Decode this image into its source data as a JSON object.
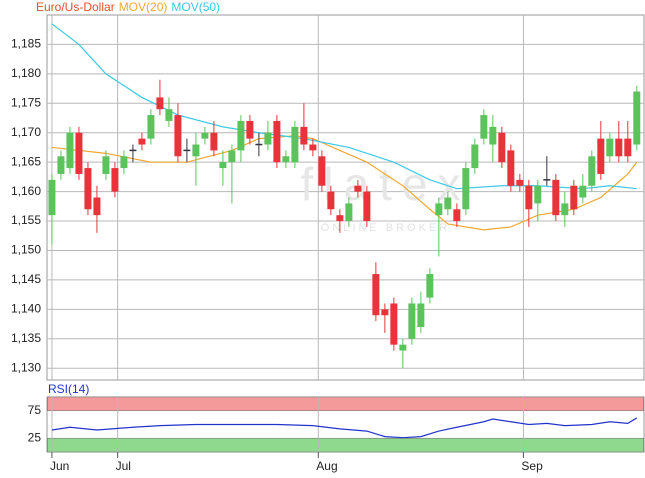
{
  "chart_data": [
    {
      "type": "candlestick",
      "ylim": [
        1.128,
        1.19
      ],
      "xlim": [
        -0.55,
        65.8
      ],
      "yticks": [
        {
          "value": 1.13,
          "label": "1,130"
        },
        {
          "value": 1.135,
          "label": "1,135"
        },
        {
          "value": 1.14,
          "label": "1,140"
        },
        {
          "value": 1.145,
          "label": "1,145"
        },
        {
          "value": 1.15,
          "label": "1,150"
        },
        {
          "value": 1.155,
          "label": "1,155"
        },
        {
          "value": 1.16,
          "label": "1,160"
        },
        {
          "value": 1.165,
          "label": "1,165"
        },
        {
          "value": 1.17,
          "label": "1,170"
        },
        {
          "value": 1.175,
          "label": "1,175"
        },
        {
          "value": 1.18,
          "label": "1,180"
        },
        {
          "value": 1.185,
          "label": "1,185"
        }
      ],
      "grid": true,
      "annotations": [
        "flatex",
        "ONLINE BROKER"
      ],
      "candles": {
        "name": "Euro/Us-Dollar",
        "color": "#e8502a",
        "up_color": "#5cc35c",
        "down_color": "#e8333a",
        "open": [
          1.156,
          1.163,
          1.164,
          1.17,
          1.164,
          1.159,
          1.163,
          1.164,
          1.164,
          1.167,
          1.169,
          1.169,
          1.176,
          1.172,
          1.173,
          1.167,
          1.166,
          1.169,
          1.17,
          1.164,
          1.165,
          1.167,
          1.172,
          1.168,
          1.168,
          1.172,
          1.165,
          1.165,
          1.171,
          1.168,
          1.166,
          1.16,
          1.156,
          1.155,
          1.161,
          1.16,
          1.146,
          1.14,
          1.141,
          1.133,
          1.135,
          1.137,
          1.142,
          1.156,
          1.157,
          1.157,
          1.157,
          1.164,
          1.169,
          1.168,
          1.17,
          1.167,
          1.162,
          1.161,
          1.158,
          1.162,
          1.162,
          1.156,
          1.161,
          1.159,
          1.161,
          1.169,
          1.166,
          1.169,
          1.169,
          1.168
        ],
        "high": [
          1.163,
          1.167,
          1.171,
          1.171,
          1.165,
          1.161,
          1.167,
          1.165,
          1.167,
          1.168,
          1.17,
          1.174,
          1.179,
          1.176,
          1.175,
          1.169,
          1.17,
          1.171,
          1.172,
          1.167,
          1.168,
          1.173,
          1.173,
          1.17,
          1.172,
          1.173,
          1.167,
          1.172,
          1.175,
          1.169,
          1.167,
          1.161,
          1.157,
          1.159,
          1.162,
          1.161,
          1.148,
          1.141,
          1.142,
          1.135,
          1.142,
          1.143,
          1.147,
          1.159,
          1.16,
          1.158,
          1.165,
          1.169,
          1.174,
          1.173,
          1.171,
          1.168,
          1.163,
          1.162,
          1.162,
          1.166,
          1.163,
          1.16,
          1.162,
          1.163,
          1.167,
          1.172,
          1.17,
          1.172,
          1.172,
          1.178
        ],
        "low": [
          1.151,
          1.162,
          1.163,
          1.162,
          1.156,
          1.153,
          1.162,
          1.159,
          1.163,
          1.165,
          1.167,
          1.168,
          1.173,
          1.171,
          1.165,
          1.165,
          1.161,
          1.168,
          1.166,
          1.161,
          1.158,
          1.165,
          1.168,
          1.166,
          1.167,
          1.164,
          1.164,
          1.164,
          1.167,
          1.166,
          1.16,
          1.156,
          1.153,
          1.154,
          1.159,
          1.154,
          1.138,
          1.136,
          1.133,
          1.13,
          1.134,
          1.136,
          1.141,
          1.149,
          1.156,
          1.154,
          1.156,
          1.163,
          1.168,
          1.165,
          1.164,
          1.16,
          1.16,
          1.154,
          1.155,
          1.161,
          1.155,
          1.154,
          1.156,
          1.158,
          1.16,
          1.162,
          1.165,
          1.165,
          1.165,
          1.167
        ],
        "close": [
          1.162,
          1.166,
          1.17,
          1.163,
          1.157,
          1.156,
          1.166,
          1.16,
          1.166,
          1.167,
          1.168,
          1.173,
          1.174,
          1.174,
          1.166,
          1.167,
          1.168,
          1.17,
          1.167,
          1.165,
          1.167,
          1.172,
          1.169,
          1.168,
          1.17,
          1.165,
          1.166,
          1.171,
          1.168,
          1.167,
          1.161,
          1.157,
          1.155,
          1.158,
          1.16,
          1.155,
          1.139,
          1.139,
          1.134,
          1.134,
          1.141,
          1.141,
          1.146,
          1.158,
          1.159,
          1.155,
          1.164,
          1.168,
          1.173,
          1.171,
          1.165,
          1.161,
          1.161,
          1.157,
          1.161,
          1.162,
          1.156,
          1.158,
          1.157,
          1.161,
          1.166,
          1.163,
          1.169,
          1.166,
          1.166,
          1.177
        ]
      },
      "series": [
        {
          "name": "MOV(20)",
          "color": "#f0a830",
          "x": [
            0,
            6,
            11,
            15,
            20,
            23,
            27,
            29,
            32,
            35,
            39,
            42,
            44,
            48,
            51,
            54,
            58,
            61,
            64,
            65
          ],
          "values": [
            1.1675,
            1.1665,
            1.165,
            1.165,
            1.167,
            1.169,
            1.1695,
            1.169,
            1.167,
            1.165,
            1.161,
            1.157,
            1.1545,
            1.1535,
            1.154,
            1.156,
            1.157,
            1.159,
            1.163,
            1.165
          ]
        },
        {
          "name": "MOV(50)",
          "color": "#3cc8e6",
          "x": [
            0,
            3,
            6,
            10,
            14,
            19,
            23,
            28,
            33,
            38,
            42,
            45,
            50,
            54,
            59,
            62,
            65
          ],
          "values": [
            1.1885,
            1.185,
            1.18,
            1.176,
            1.173,
            1.171,
            1.17,
            1.169,
            1.1675,
            1.165,
            1.162,
            1.1605,
            1.161,
            1.161,
            1.1605,
            1.161,
            1.1605
          ]
        }
      ]
    },
    {
      "type": "line",
      "title": "RSI(14)",
      "ylim": [
        0,
        100
      ],
      "xlim": [
        -0.55,
        65.8
      ],
      "yticks": [
        25,
        75
      ],
      "xticks": [
        {
          "value": 0,
          "label": "Jun"
        },
        {
          "value": 7.3,
          "label": "Jul"
        },
        {
          "value": 29.6,
          "label": "Aug"
        },
        {
          "value": 52.4,
          "label": "Sep"
        }
      ],
      "zones": [
        {
          "range": [
            75,
            100
          ],
          "color": "#f49a9a"
        },
        {
          "range": [
            0,
            25
          ],
          "color": "#8fd98f"
        }
      ],
      "series": [
        {
          "color": "#2233cc",
          "x": [
            0,
            2,
            5,
            9,
            12,
            16,
            21,
            25,
            29,
            32,
            35,
            37,
            39,
            41,
            43,
            45,
            48,
            49,
            51,
            53,
            55,
            57,
            60,
            62,
            64,
            65
          ],
          "values": [
            40,
            45,
            40,
            45,
            48,
            50,
            50,
            50,
            48,
            42,
            38,
            28,
            26,
            28,
            38,
            45,
            55,
            60,
            55,
            50,
            52,
            48,
            50,
            55,
            52,
            62
          ]
        }
      ]
    }
  ]
}
